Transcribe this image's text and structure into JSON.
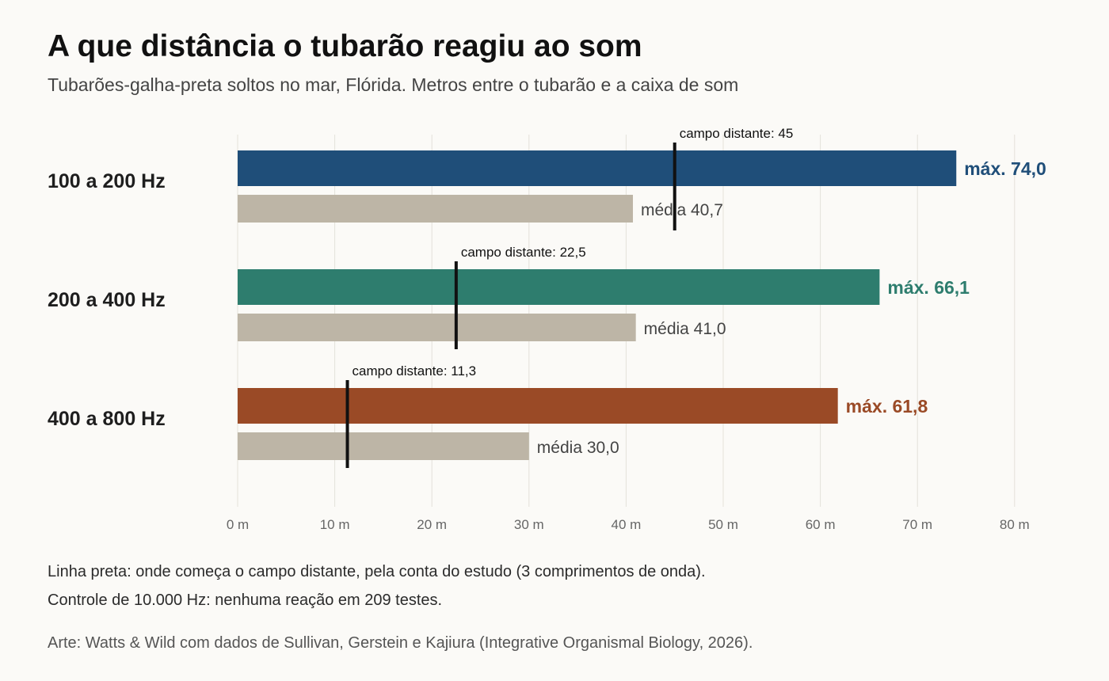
{
  "title": "A que distância o tubarão reagiu ao som",
  "subtitle": "Tubarões-galha-preta soltos no mar, Flórida. Metros entre o tubarão e a caixa de som",
  "notes": {
    "line1": "Linha preta: onde começa o campo distante, pela conta do estudo (3 comprimentos de onda).",
    "line2": "Controle de 10.000 Hz: nenhuma reação em 209 testes."
  },
  "credit": "Arte: Watts & Wild com dados de Sullivan, Gerstein e Kajiura (Integrative Organismal Biology, 2026).",
  "chart_data": {
    "type": "bar",
    "orientation": "horizontal",
    "xlim": [
      0,
      80
    ],
    "x_ticks": [
      0,
      10,
      20,
      30,
      40,
      50,
      60,
      70,
      80
    ],
    "x_tick_labels": [
      "0 m",
      "10 m",
      "20 m",
      "30 m",
      "40 m",
      "50 m",
      "60 m",
      "70 m",
      "80 m"
    ],
    "grid": "vertical",
    "mean_color": "#bdb5a6",
    "far_field_color": "#111111",
    "groups": [
      {
        "category": "100 a 200 Hz",
        "max": 74.0,
        "max_label": "máx. 74,0",
        "mean": 40.7,
        "mean_label": "média 40,7",
        "far_field": 45,
        "far_field_label": "campo distante: 45",
        "color": "#1f4e79"
      },
      {
        "category": "200 a 400 Hz",
        "max": 66.1,
        "max_label": "máx. 66,1",
        "mean": 41.0,
        "mean_label": "média 41,0",
        "far_field": 22.5,
        "far_field_label": "campo distante: 22,5",
        "color": "#2e7d6e"
      },
      {
        "category": "400 a 800 Hz",
        "max": 61.8,
        "max_label": "máx. 61,8",
        "mean": 30.0,
        "mean_label": "média 30,0",
        "far_field": 11.3,
        "far_field_label": "campo distante: 11,3",
        "color": "#9a4a26"
      }
    ]
  }
}
